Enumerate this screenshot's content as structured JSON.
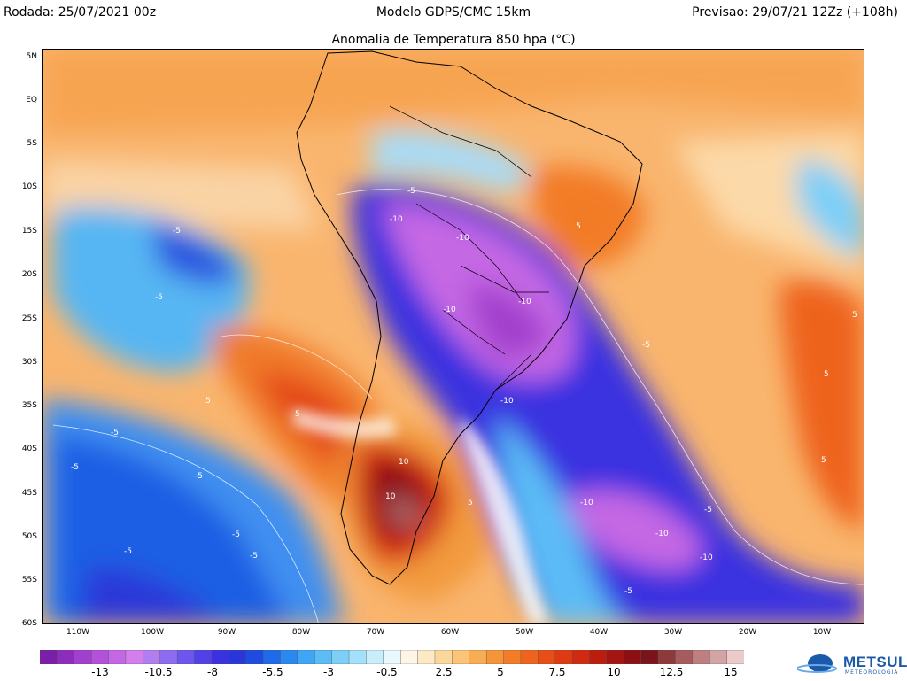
{
  "header": {
    "left": "Rodada: 25/07/2021 00z",
    "center": "Modelo GDPS/CMC 15km",
    "right": "Previsao: 29/07/21 12Zz (+108h)",
    "subtitle": "Anomalia de Temperatura 850 hpa (°C)"
  },
  "map": {
    "lat_labels": [
      "5N",
      "EQ",
      "5S",
      "10S",
      "15S",
      "20S",
      "25S",
      "30S",
      "35S",
      "40S",
      "45S",
      "50S",
      "55S",
      "60S"
    ],
    "lon_labels": [
      "110W",
      "100W",
      "90W",
      "80W",
      "70W",
      "60W",
      "50W",
      "40W",
      "30W",
      "20W",
      "10W"
    ],
    "contour_labels": [
      "-5",
      "-10",
      "5",
      "10"
    ]
  },
  "colorbar": {
    "colors": [
      "#7a1fa8",
      "#8e2dbb",
      "#a33fcd",
      "#b451d9",
      "#c567e4",
      "#d27fec",
      "#b07ef0",
      "#8e6cf2",
      "#6e55ee",
      "#5341e8",
      "#3a31e0",
      "#2a37d8",
      "#1e4be0",
      "#1f6ae8",
      "#2a88ef",
      "#3ea6f4",
      "#5cbcf6",
      "#7dcff8",
      "#a3e0fa",
      "#c8eefb",
      "#e8f8fd",
      "#fdf6e6",
      "#fde9c4",
      "#fcd79c",
      "#fbc478",
      "#f8ad55",
      "#f5953a",
      "#f27c28",
      "#ee641c",
      "#e84e16",
      "#e03a12",
      "#d02a10",
      "#bb1e0f",
      "#a31510",
      "#8c1013",
      "#7a141a",
      "#8f3a3a",
      "#a65c5c",
      "#bd7f7f",
      "#d4a3a3",
      "#ebcaca"
    ],
    "labels": [
      "-13",
      "-10.5",
      "-8",
      "-5.5",
      "-3",
      "-0.5",
      "2.5",
      "5",
      "7.5",
      "10",
      "12.5",
      "15"
    ]
  },
  "logo": {
    "text": "METSUL",
    "sub": "METEOROLOGIA"
  }
}
